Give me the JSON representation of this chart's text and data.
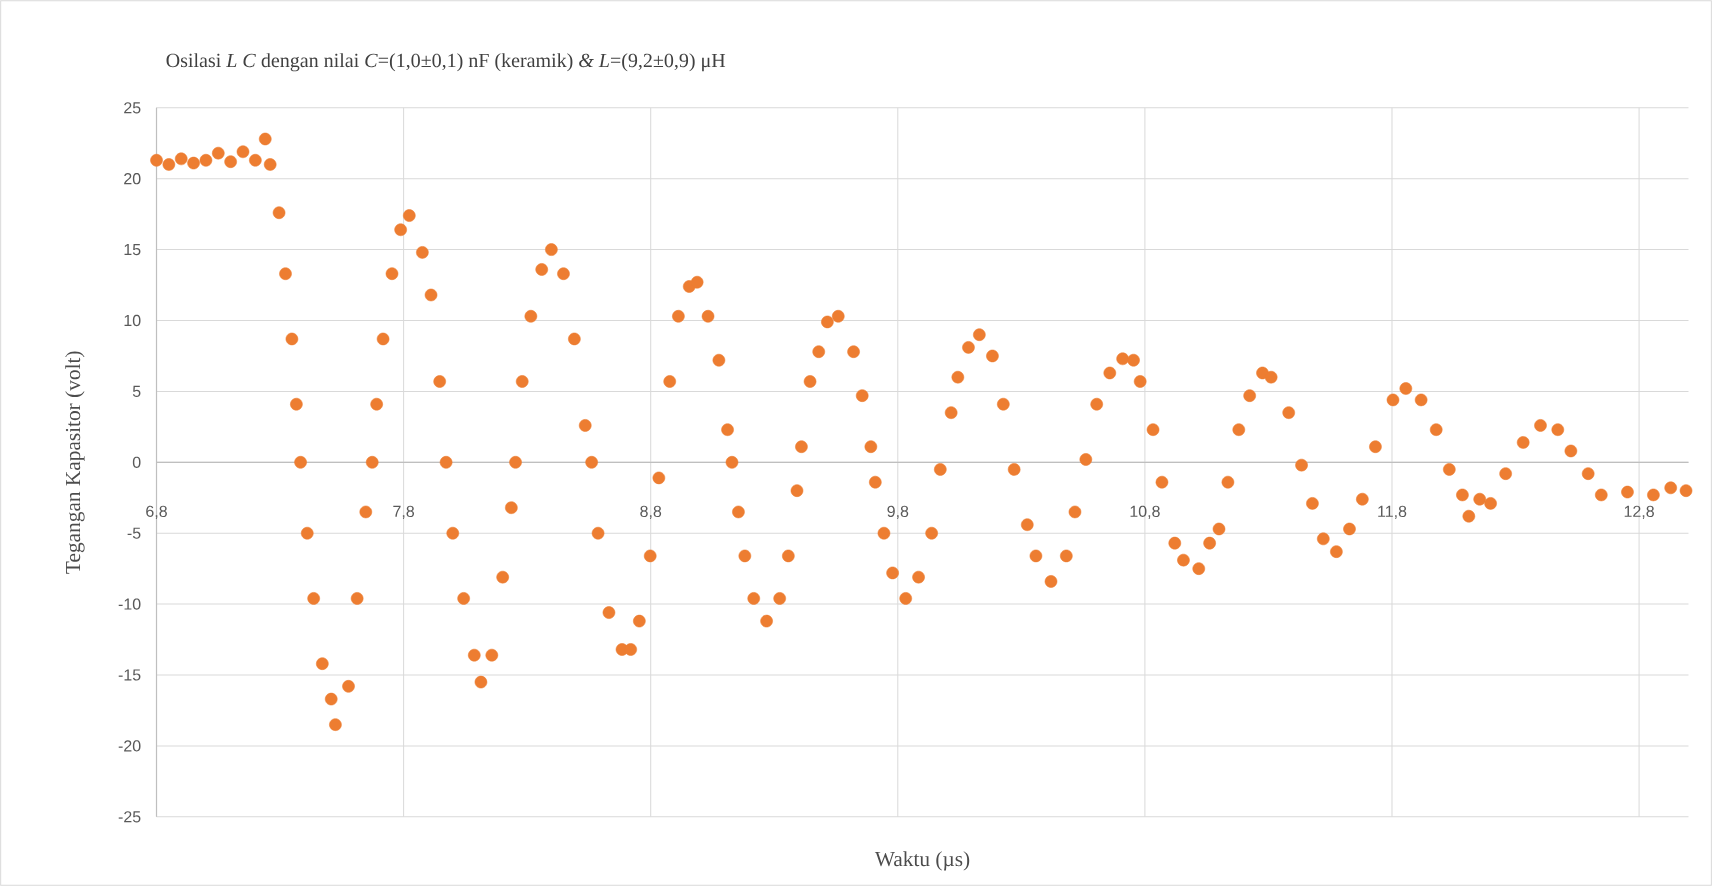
{
  "chart_data": {
    "type": "scatter",
    "title": "Osilasi  *L C* dengan nilai *C*=(1,0±0,1) nF (keramik)  *&* *L*=(9,2±0,9)  μH",
    "xlabel": "Waktu (µs)",
    "ylabel": "Tegangan Kapasitor (volt)",
    "xlim": [
      6.8,
      13.0
    ],
    "ylim": [
      -25,
      25
    ],
    "xticks": [
      {
        "value": 6.8,
        "label": "6,8"
      },
      {
        "value": 7.8,
        "label": "7,8"
      },
      {
        "value": 8.8,
        "label": "8,8"
      },
      {
        "value": 9.8,
        "label": "9,8"
      },
      {
        "value": 10.8,
        "label": "10,8"
      },
      {
        "value": 11.8,
        "label": "11,8"
      },
      {
        "value": 12.8,
        "label": "12,8"
      }
    ],
    "yticks": [
      -25,
      -20,
      -15,
      -10,
      -5,
      0,
      5,
      10,
      15,
      20,
      25
    ],
    "grid": true,
    "marker": "circle",
    "series": [
      {
        "color": "#ed7d31",
        "x": [
          6.8,
          6.85,
          6.9,
          6.95,
          7.0,
          7.05,
          7.1,
          7.15,
          7.2,
          7.24,
          7.26,
          7.296,
          7.322,
          7.348,
          7.366,
          7.383,
          7.41,
          7.436,
          7.471,
          7.507,
          7.524,
          7.577,
          7.612,
          7.647,
          7.673,
          7.691,
          7.717,
          7.753,
          7.788,
          7.823,
          7.876,
          7.911,
          7.946,
          7.972,
          7.999,
          8.043,
          8.086,
          8.113,
          8.157,
          8.201,
          8.236,
          8.253,
          8.28,
          8.315,
          8.359,
          8.398,
          8.447,
          8.491,
          8.535,
          8.561,
          8.587,
          8.631,
          8.684,
          8.719,
          8.754,
          8.798,
          8.833,
          8.877,
          8.912,
          8.956,
          8.988,
          9.032,
          9.076,
          9.111,
          9.129,
          9.155,
          9.181,
          9.217,
          9.269,
          9.322,
          9.357,
          9.392,
          9.41,
          9.445,
          9.48,
          9.515,
          9.559,
          9.621,
          9.656,
          9.691,
          9.709,
          9.744,
          9.779,
          9.832,
          9.884,
          9.937,
          9.972,
          10.016,
          10.043,
          10.086,
          10.13,
          10.183,
          10.227,
          10.271,
          10.324,
          10.359,
          10.42,
          10.482,
          10.517,
          10.561,
          10.605,
          10.658,
          10.71,
          10.754,
          10.781,
          10.833,
          10.869,
          10.921,
          10.956,
          11.018,
          11.062,
          11.1,
          11.136,
          11.18,
          11.224,
          11.276,
          11.311,
          11.382,
          11.434,
          11.478,
          11.522,
          11.575,
          11.628,
          11.68,
          11.733,
          11.804,
          11.856,
          11.918,
          11.979,
          12.032,
          12.085,
          12.111,
          12.155,
          12.199,
          12.26,
          12.331,
          12.401,
          12.471,
          12.524,
          12.594,
          12.647,
          12.753,
          12.858,
          12.928,
          12.99
        ],
        "values": [
          21.3,
          21.0,
          21.4,
          21.1,
          21.3,
          21.8,
          21.2,
          21.9,
          21.3,
          22.8,
          21.0,
          17.6,
          13.3,
          8.7,
          4.1,
          0,
          -5,
          -9.6,
          -14.2,
          -16.7,
          -18.5,
          -15.8,
          -9.6,
          -3.5,
          0,
          4.1,
          8.7,
          13.3,
          16.4,
          17.4,
          14.8,
          11.8,
          5.7,
          0,
          -5,
          -9.6,
          -13.6,
          -15.5,
          -13.6,
          -8.1,
          -3.2,
          0,
          5.7,
          10.3,
          13.6,
          15.0,
          13.3,
          8.7,
          2.6,
          0,
          -5,
          -10.6,
          -13.2,
          -13.2,
          -11.2,
          -6.6,
          -1.1,
          5.7,
          10.3,
          12.4,
          12.7,
          10.3,
          7.2,
          2.3,
          0,
          -3.5,
          -6.6,
          -9.6,
          -11.2,
          -9.6,
          -6.6,
          -2,
          1.1,
          5.7,
          7.8,
          9.9,
          10.3,
          7.8,
          4.7,
          1.1,
          -1.4,
          -5,
          -7.8,
          -9.6,
          -8.1,
          -5,
          -0.5,
          3.5,
          6.0,
          8.1,
          9.0,
          7.5,
          4.1,
          -0.5,
          -4.4,
          -6.6,
          -8.4,
          -6.6,
          -3.5,
          0.2,
          4.1,
          6.3,
          7.3,
          7.2,
          5.7,
          2.3,
          -1.4,
          -5.7,
          -6.9,
          -7.5,
          -5.7,
          -4.7,
          -1.4,
          2.3,
          4.7,
          6.3,
          6.0,
          3.5,
          -0.2,
          -2.9,
          -5.4,
          -6.3,
          -4.7,
          -2.6,
          1.1,
          4.4,
          5.2,
          4.4,
          2.3,
          -0.5,
          -2.3,
          -3.8,
          -2.6,
          -2.9,
          -0.8,
          1.4,
          2.6,
          2.3,
          0.8,
          -0.8,
          -2.3,
          -2.1,
          -2.3,
          -1.8,
          -2.0
        ]
      }
    ]
  }
}
